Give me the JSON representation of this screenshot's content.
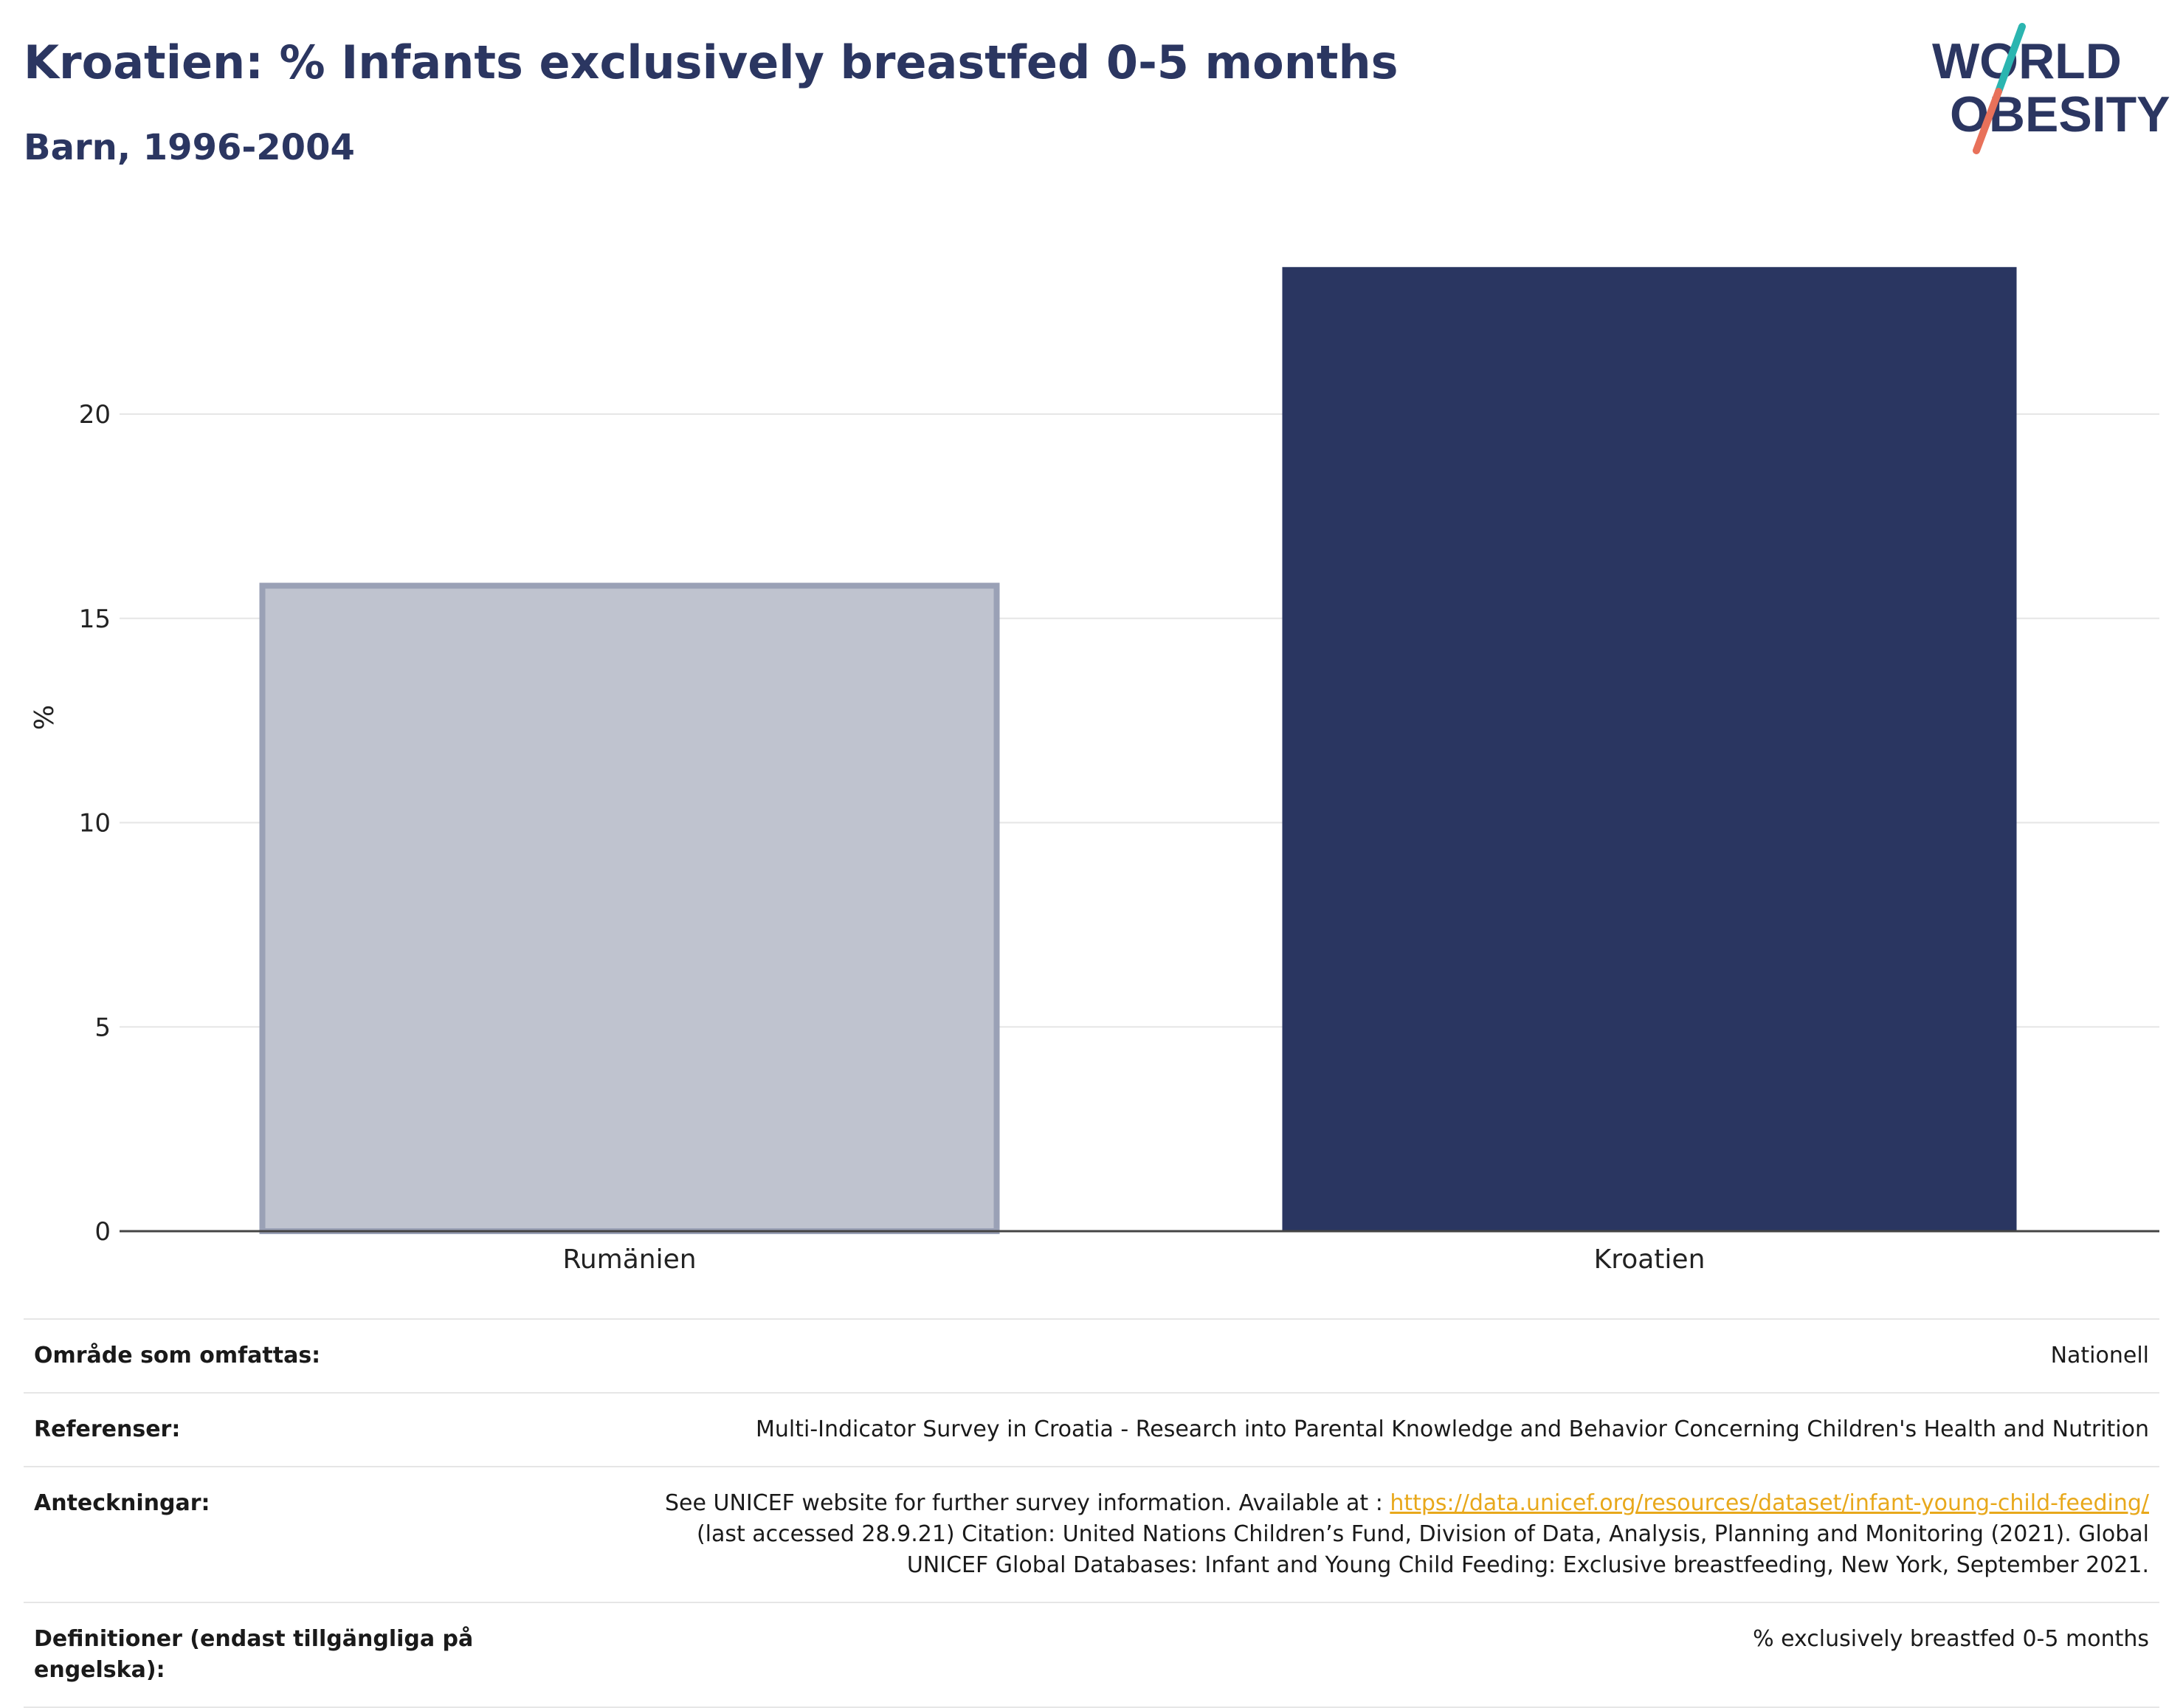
{
  "header": {
    "title": "Kroatien: % Infants exclusively breastfed 0-5 months",
    "subtitle": "Barn, 1996-2004"
  },
  "logo": {
    "line1": "WORLD",
    "line2": "OBESITY",
    "accent_teal": "#2bb5b0",
    "accent_coral": "#e8715a",
    "text_color": "#2b3661"
  },
  "chart_data": {
    "type": "bar",
    "categories": [
      "Rumänien",
      "Kroatien"
    ],
    "values": [
      15.8,
      23.6
    ],
    "colors": [
      "#bfc3cf",
      "#2a3661"
    ],
    "highlight": "Kroatien",
    "title": "Kroatien: % Infants exclusively breastfed 0-5 months",
    "subtitle": "Barn, 1996-2004",
    "xlabel": "",
    "ylabel": "%",
    "ylim": [
      0,
      24.5
    ],
    "yticks": [
      0,
      5,
      10,
      15,
      20
    ],
    "grid": true,
    "legend": "none"
  },
  "meta": {
    "rows": [
      {
        "label": "Område som omfattas:",
        "value": "Nationell"
      },
      {
        "label": "Referenser:",
        "value": "Multi-Indicator Survey in Croatia - Research into Parental Knowledge and Behavior Concerning Children's Health and Nutrition"
      },
      {
        "label": "Anteckningar:",
        "value_pre": "See UNICEF website for further survey information. Available at : ",
        "link": "https://data.unicef.org/resources/dataset/infant-young-child-feeding/",
        "value_line2": "(last accessed 28.9.21) Citation: United Nations Children’s Fund, Division of Data, Analysis, Planning and Monitoring (2021). Global",
        "value_line3": "UNICEF Global Databases: Infant and Young Child Feeding: Exclusive breastfeeding, New York, September 2021."
      },
      {
        "label": "Definitioner (endast tillgängliga på engelska):",
        "value": "% exclusively breastfed 0-5 months"
      }
    ]
  }
}
